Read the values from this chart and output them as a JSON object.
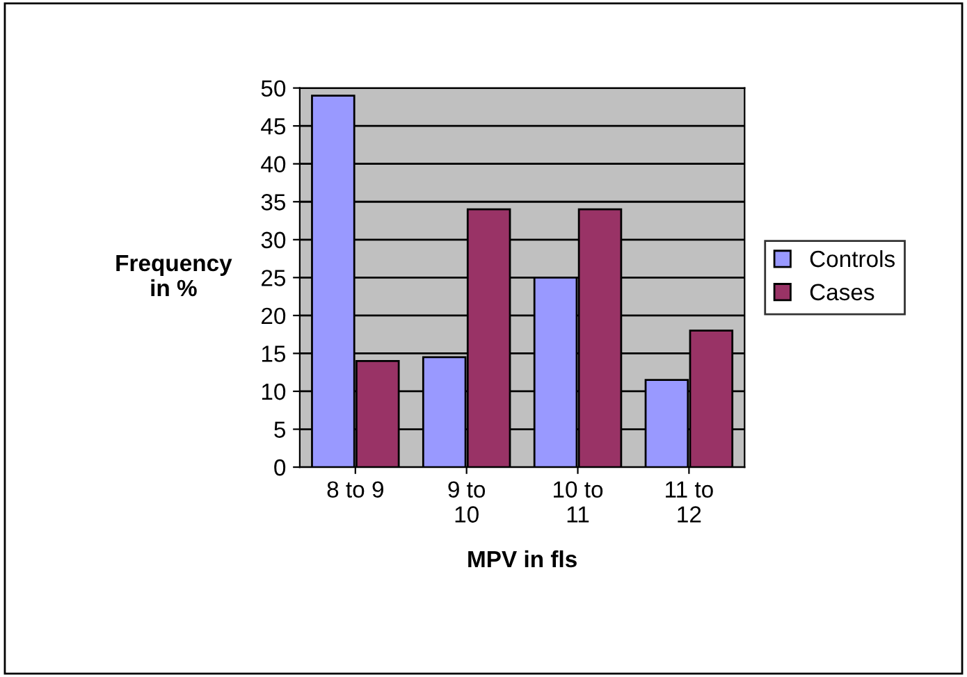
{
  "chart_data": {
    "type": "bar",
    "xlabel": "MPV in fls",
    "ylabel": "Frequency\nin %",
    "categories": [
      "8 to 9",
      "9 to\n10",
      "10 to\n11",
      "11 to\n12"
    ],
    "series": [
      {
        "name": "Controls",
        "color": "#9999ff",
        "values": [
          49,
          14.5,
          25,
          11.5
        ]
      },
      {
        "name": "Cases",
        "color": "#993366",
        "values": [
          14,
          34,
          34,
          18
        ]
      }
    ],
    "ylim": [
      0,
      50
    ],
    "yticks": [
      0,
      5,
      10,
      15,
      20,
      25,
      30,
      35,
      40,
      45,
      50
    ],
    "grid": "y",
    "legend": "right"
  }
}
